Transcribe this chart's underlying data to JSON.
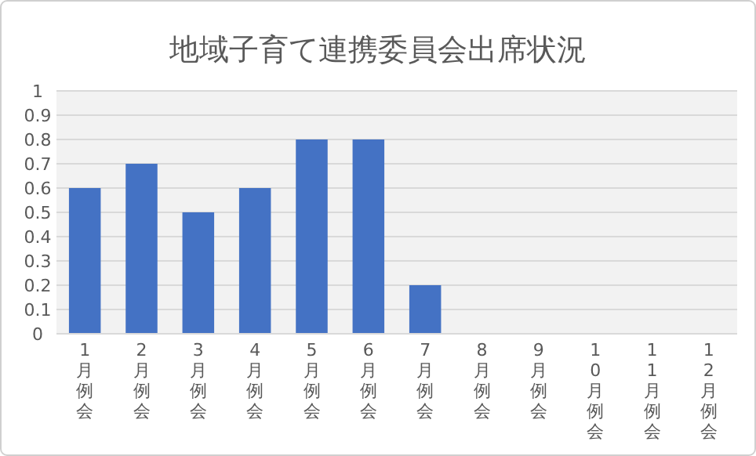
{
  "chart_data": {
    "type": "bar",
    "title": "地域子育て連携委員会出席状況",
    "categories": [
      "1月例会",
      "2月例会",
      "3月例会",
      "4月例会",
      "5月例会",
      "6月例会",
      "7月例会",
      "8月例会",
      "9月例会",
      "10月例会",
      "11月例会",
      "12月例会"
    ],
    "values": [
      0.6,
      0.7,
      0.5,
      0.6,
      0.8,
      0.8,
      0.2,
      0,
      0,
      0,
      0,
      0
    ],
    "color": "#4472c4",
    "ylim": [
      0,
      1
    ],
    "yticks": [
      0,
      0.1,
      0.2,
      0.3,
      0.4,
      0.5,
      0.6,
      0.7,
      0.8,
      0.9,
      1
    ],
    "grid": "y"
  }
}
